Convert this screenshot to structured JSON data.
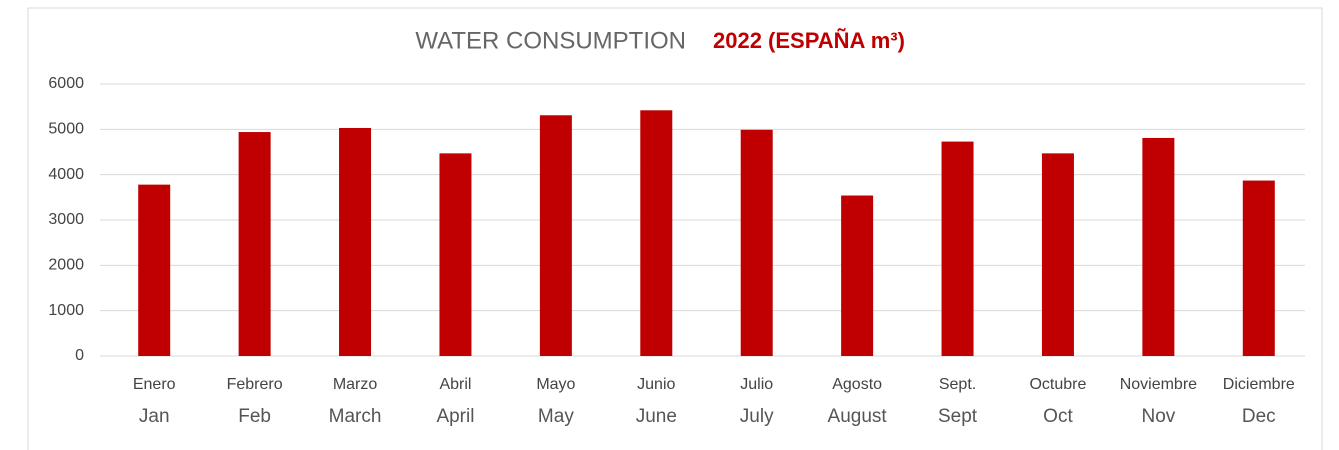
{
  "chart_data": {
    "type": "bar",
    "title": "WATER CONSUMPTION",
    "subtitle": "2022 (ESPAÑA m³)",
    "categories": [
      "Enero",
      "Febrero",
      "Marzo",
      "Abril",
      "Mayo",
      "Junio",
      "Julio",
      "Agosto",
      "Sept.",
      "Octubre",
      "Noviembre",
      "Diciembre"
    ],
    "categories_en": [
      "Jan",
      "Feb",
      "March",
      "April",
      "May",
      "June",
      "July",
      "August",
      "Sept",
      "Oct",
      "Nov",
      "Dec"
    ],
    "values": [
      3780,
      4940,
      5030,
      4470,
      5310,
      5420,
      4990,
      3540,
      4730,
      4470,
      4810,
      3870
    ],
    "color": "#c00000",
    "ylim": [
      0,
      6000
    ],
    "yticks": [
      0,
      1000,
      2000,
      3000,
      4000,
      5000,
      6000
    ],
    "grid": true
  }
}
